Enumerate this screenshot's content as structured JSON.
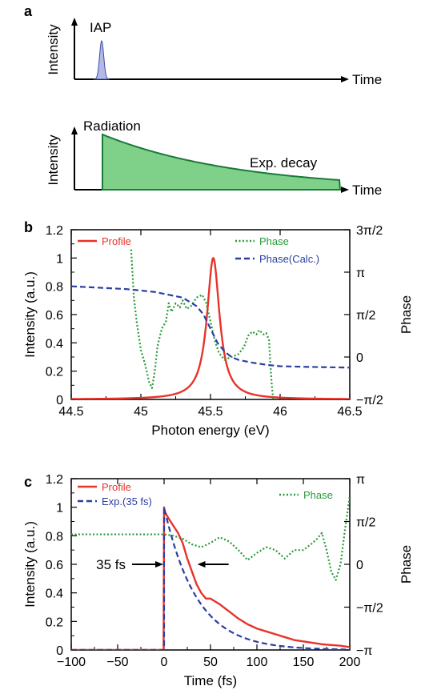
{
  "panels": {
    "a": {
      "letter": "a",
      "top": {
        "ylabel": "Intensity",
        "xlabel": "Time",
        "pulse_label": "IAP",
        "color": "#3b4ea0",
        "fill": "#b3b8e6"
      },
      "bottom": {
        "ylabel": "Intensity",
        "xlabel": "Time",
        "radiation_label": "Radiation",
        "decay_label": "Exp. decay",
        "radiation_color": "#1f9a3a",
        "decay_color": "#9a1f9a",
        "fill": "#7fd088",
        "stroke": "#1a7a3a"
      }
    },
    "b": {
      "letter": "b"
    },
    "c": {
      "letter": "c"
    }
  },
  "chart_data": [
    {
      "id": "b",
      "type": "line",
      "xlabel": "Photon energy (eV)",
      "ylabel": "Intensity (a.u.)",
      "y2label": "Phase",
      "xlim": [
        44.5,
        46.5
      ],
      "ylim": [
        0,
        1.2
      ],
      "xticks": [
        "44.5",
        "45",
        "45.5",
        "46",
        "46.5"
      ],
      "yticks": [
        "0",
        "0.2",
        "0.4",
        "0.6",
        "0.8",
        "1",
        "1.2"
      ],
      "y2ticks": [
        "−π/2",
        "0",
        "π/2",
        "π",
        "3π/2"
      ],
      "legend_placement": "top",
      "series": [
        {
          "name": "Profile",
          "color": "#e8332a",
          "dash": "solid",
          "axis": "left",
          "model": {
            "kind": "lorentz",
            "center": 45.52,
            "width": 0.055,
            "amp": 1.0
          }
        },
        {
          "name": "Phase",
          "color": "#2a9a3a",
          "dash": "dotted",
          "axis": "left",
          "x": [
            44.93,
            44.95,
            44.97,
            45.0,
            45.03,
            45.06,
            45.08,
            45.1,
            45.12,
            45.15,
            45.18,
            45.2,
            45.22,
            45.25,
            45.28,
            45.3,
            45.33,
            45.36,
            45.4,
            45.44,
            45.47,
            45.5,
            45.53,
            45.56,
            45.6,
            45.65,
            45.7,
            45.74,
            45.77,
            45.8,
            45.83,
            45.85,
            45.88,
            45.9,
            45.92,
            45.93,
            45.94,
            45.95
          ],
          "y": [
            1.06,
            0.72,
            0.55,
            0.35,
            0.25,
            0.12,
            0.08,
            0.2,
            0.38,
            0.5,
            0.55,
            0.68,
            0.62,
            0.68,
            0.65,
            0.7,
            0.64,
            0.66,
            0.72,
            0.74,
            0.68,
            0.55,
            0.42,
            0.33,
            0.28,
            0.3,
            0.32,
            0.37,
            0.45,
            0.48,
            0.46,
            0.49,
            0.46,
            0.47,
            0.42,
            0.25,
            0.1,
            0.0
          ]
        },
        {
          "name": "Phase(Calc.)",
          "color": "#2a3fa0",
          "dash": "dashed",
          "axis": "left",
          "x": [
            44.5,
            44.7,
            44.9,
            45.0,
            45.1,
            45.2,
            45.3,
            45.4,
            45.45,
            45.5,
            45.55,
            45.6,
            45.65,
            45.7,
            45.8,
            45.9,
            46.0,
            46.2,
            46.5
          ],
          "y": [
            0.8,
            0.79,
            0.78,
            0.77,
            0.76,
            0.74,
            0.72,
            0.66,
            0.6,
            0.5,
            0.4,
            0.34,
            0.3,
            0.28,
            0.26,
            0.245,
            0.235,
            0.23,
            0.225
          ]
        }
      ]
    },
    {
      "id": "c",
      "type": "line",
      "xlabel": "Time (fs)",
      "ylabel": "Intensity (a.u.)",
      "y2label": "Phase",
      "xlim": [
        -100,
        200
      ],
      "ylim": [
        0,
        1.2
      ],
      "xticks": [
        "−100",
        "−50",
        "0",
        "50",
        "100",
        "150",
        "200"
      ],
      "yticks": [
        "0",
        "0.2",
        "0.4",
        "0.6",
        "0.8",
        "1",
        "1.2"
      ],
      "y2ticks": [
        "−π",
        "−π/2",
        "0",
        "π/2",
        "π"
      ],
      "legend_placement": "top",
      "annotation": {
        "text": "35 fs",
        "color": "#f28c1a",
        "y": 0.6,
        "left_x": 0,
        "right_x": 35
      },
      "series": [
        {
          "name": "Profile",
          "color": "#e8332a",
          "dash": "solid",
          "axis": "left",
          "x": [
            -100,
            -0.5,
            0,
            0.5,
            5,
            10,
            15,
            20,
            25,
            30,
            35,
            40,
            45,
            50,
            55,
            60,
            70,
            80,
            90,
            100,
            110,
            120,
            130,
            140,
            150,
            160,
            170,
            180,
            190,
            200
          ],
          "y": [
            0,
            0,
            1.0,
            0.97,
            0.92,
            0.87,
            0.82,
            0.75,
            0.64,
            0.55,
            0.46,
            0.4,
            0.36,
            0.36,
            0.34,
            0.32,
            0.27,
            0.22,
            0.18,
            0.15,
            0.13,
            0.11,
            0.09,
            0.07,
            0.06,
            0.05,
            0.04,
            0.035,
            0.03,
            0.02
          ]
        },
        {
          "name": "Exp.(35 fs)",
          "color": "#2a3fa0",
          "dash": "dashed",
          "axis": "left",
          "model": {
            "kind": "exp",
            "tau": 35,
            "start": 0
          }
        },
        {
          "name": "Phase",
          "color": "#2a9a3a",
          "dash": "dotted",
          "axis": "left",
          "x": [
            -100,
            -50,
            0,
            10,
            20,
            30,
            40,
            50,
            60,
            70,
            80,
            90,
            100,
            110,
            120,
            130,
            140,
            150,
            160,
            165,
            170,
            175,
            180,
            185,
            190,
            195,
            200
          ],
          "y": [
            0.81,
            0.81,
            0.81,
            0.8,
            0.78,
            0.74,
            0.72,
            0.75,
            0.79,
            0.76,
            0.7,
            0.63,
            0.68,
            0.72,
            0.7,
            0.64,
            0.7,
            0.7,
            0.75,
            0.78,
            0.82,
            0.7,
            0.55,
            0.49,
            0.6,
            0.85,
            1.08
          ]
        }
      ]
    }
  ]
}
